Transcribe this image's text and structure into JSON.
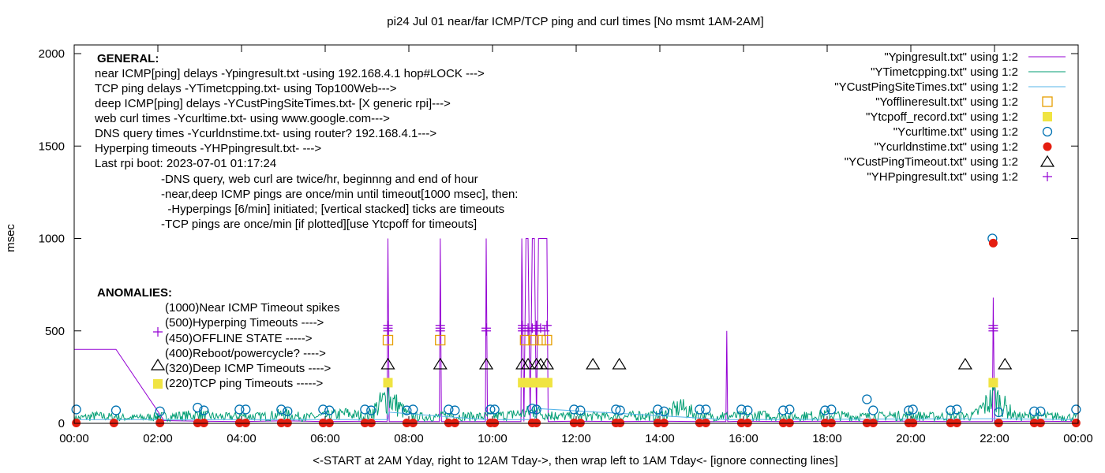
{
  "chart_data": {
    "type": "line",
    "title": "pi24 Jul 01  near/far ICMP/TCP ping and curl times [No msmt 1AM-2AM]",
    "xlabel": "<-START at 2AM Yday, right to 12AM Tday->, then wrap left to 1AM Tday<- [ignore connecting lines]",
    "ylabel": "msec",
    "xlim": [
      0,
      24
    ],
    "ylim": [
      0,
      2050
    ],
    "x_ticks": [
      0,
      2,
      4,
      6,
      8,
      10,
      12,
      14,
      16,
      18,
      20,
      22,
      24
    ],
    "x_tick_labels": [
      "00:00",
      "02:00",
      "04:00",
      "06:00",
      "08:00",
      "10:00",
      "12:00",
      "14:00",
      "16:00",
      "18:00",
      "20:00",
      "22:00",
      "00:00"
    ],
    "y_ticks": [
      0,
      500,
      1000,
      1500,
      2000
    ],
    "y_tick_labels": [
      "0",
      "500",
      "1000",
      "1500",
      "2000"
    ],
    "legend_position": "top-right",
    "series": [
      {
        "name": "\"Ypingresult.txt\" using 1:2",
        "style": "line",
        "color": "#9400d3",
        "points": [
          [
            0,
            400
          ],
          [
            1,
            400
          ],
          [
            2.15,
            15
          ],
          [
            3,
            12
          ],
          [
            4,
            10
          ],
          [
            5,
            14
          ],
          [
            6,
            10
          ],
          [
            7,
            12
          ],
          [
            7.48,
            10
          ],
          [
            7.5,
            1000
          ],
          [
            7.53,
            10
          ],
          [
            8.73,
            10
          ],
          [
            8.75,
            1000
          ],
          [
            8.78,
            10
          ],
          [
            9.83,
            10
          ],
          [
            9.85,
            1000
          ],
          [
            9.88,
            10
          ],
          [
            10.68,
            10
          ],
          [
            10.7,
            1000
          ],
          [
            10.75,
            10
          ],
          [
            10.8,
            1000
          ],
          [
            10.85,
            1000
          ],
          [
            10.9,
            10
          ],
          [
            10.95,
            1000
          ],
          [
            11.0,
            1000
          ],
          [
            11.05,
            10
          ],
          [
            11.1,
            1000
          ],
          [
            11.2,
            1000
          ],
          [
            11.3,
            1000
          ],
          [
            11.33,
            10
          ],
          [
            12,
            12
          ],
          [
            13,
            10
          ],
          [
            14,
            12
          ],
          [
            15,
            10
          ],
          [
            15.58,
            10
          ],
          [
            15.6,
            500
          ],
          [
            15.62,
            10
          ],
          [
            16,
            12
          ],
          [
            17,
            10
          ],
          [
            18,
            12
          ],
          [
            19,
            10
          ],
          [
            20,
            12
          ],
          [
            21,
            10
          ],
          [
            21.95,
            10
          ],
          [
            21.97,
            680
          ],
          [
            22.0,
            10
          ],
          [
            23,
            12
          ],
          [
            24,
            10
          ]
        ]
      },
      {
        "name": "\"YTimetcpping.txt\" using 1:2",
        "style": "noise-line",
        "color": "#009e73",
        "points": [
          [
            0,
            40
          ],
          [
            0.5,
            60
          ],
          [
            1,
            50
          ],
          [
            1.5,
            45
          ],
          [
            2,
            55
          ],
          [
            2.5,
            60
          ],
          [
            3,
            70
          ],
          [
            3.5,
            50
          ],
          [
            4,
            60
          ],
          [
            4.5,
            55
          ],
          [
            5,
            75
          ],
          [
            5.5,
            50
          ],
          [
            6,
            60
          ],
          [
            6.5,
            80
          ],
          [
            7,
            55
          ],
          [
            7.5,
            220
          ],
          [
            8,
            60
          ],
          [
            8.5,
            50
          ],
          [
            9,
            65
          ],
          [
            9.5,
            55
          ],
          [
            10,
            60
          ],
          [
            10.5,
            70
          ],
          [
            11,
            100
          ],
          [
            11.5,
            60
          ],
          [
            12,
            55
          ],
          [
            12.5,
            60
          ],
          [
            13,
            50
          ],
          [
            13.5,
            65
          ],
          [
            14,
            60
          ],
          [
            14.5,
            130
          ],
          [
            15,
            55
          ],
          [
            15.5,
            60
          ],
          [
            16,
            60
          ],
          [
            16.5,
            65
          ],
          [
            17,
            55
          ],
          [
            17.5,
            60
          ],
          [
            18,
            70
          ],
          [
            18.5,
            60
          ],
          [
            19,
            55
          ],
          [
            19.5,
            60
          ],
          [
            20,
            65
          ],
          [
            20.5,
            55
          ],
          [
            21,
            60
          ],
          [
            21.5,
            60
          ],
          [
            22,
            220
          ],
          [
            22.5,
            55
          ],
          [
            23,
            60
          ],
          [
            23.5,
            55
          ],
          [
            24,
            50
          ]
        ]
      },
      {
        "name": "\"YCustPingSiteTimes.txt\" using 1:2",
        "style": "line",
        "color": "#56b4e9",
        "points": [
          [
            0,
            20
          ],
          [
            2,
            20
          ],
          [
            7.5,
            20
          ],
          [
            7.52,
            60
          ],
          [
            9.85,
            20
          ],
          [
            11,
            20
          ],
          [
            11.05,
            80
          ],
          [
            15.6,
            20
          ],
          [
            22,
            25
          ],
          [
            24,
            20
          ]
        ]
      },
      {
        "name": "\"Yofflineresult.txt\" using 1:2",
        "style": "open-square",
        "color": "#e69f00",
        "points": [
          [
            7.5,
            450
          ],
          [
            8.75,
            450
          ],
          [
            10.78,
            450
          ],
          [
            10.98,
            450
          ],
          [
            11.15,
            450
          ],
          [
            11.3,
            450
          ]
        ]
      },
      {
        "name": "\"Ytcpoff_record.txt\" using 1:2",
        "style": "filled-square",
        "color": "#f0e442",
        "points": [
          [
            7.5,
            220
          ],
          [
            10.72,
            220
          ],
          [
            10.85,
            220
          ],
          [
            10.95,
            220
          ],
          [
            11.05,
            220
          ],
          [
            11.15,
            220
          ],
          [
            11.25,
            220
          ],
          [
            11.32,
            220
          ],
          [
            21.97,
            220
          ]
        ]
      },
      {
        "name": "\"Ycurltime.txt\" using 1:2",
        "style": "open-circle",
        "color": "#0072b2",
        "points": [
          [
            0.05,
            75
          ],
          [
            1.0,
            70
          ],
          [
            2.05,
            65
          ],
          [
            2.95,
            85
          ],
          [
            3.1,
            70
          ],
          [
            3.95,
            75
          ],
          [
            4.1,
            75
          ],
          [
            4.95,
            75
          ],
          [
            5.1,
            65
          ],
          [
            5.95,
            75
          ],
          [
            6.1,
            70
          ],
          [
            6.95,
            75
          ],
          [
            7.1,
            70
          ],
          [
            7.95,
            70
          ],
          [
            8.1,
            75
          ],
          [
            8.95,
            75
          ],
          [
            9.1,
            70
          ],
          [
            9.95,
            75
          ],
          [
            10.05,
            75
          ],
          [
            10.95,
            80
          ],
          [
            11.05,
            75
          ],
          [
            11.95,
            75
          ],
          [
            12.1,
            70
          ],
          [
            12.95,
            75
          ],
          [
            13.05,
            70
          ],
          [
            13.95,
            75
          ],
          [
            14.1,
            65
          ],
          [
            14.95,
            75
          ],
          [
            15.1,
            75
          ],
          [
            15.95,
            75
          ],
          [
            16.1,
            70
          ],
          [
            16.95,
            70
          ],
          [
            17.1,
            75
          ],
          [
            17.95,
            70
          ],
          [
            18.1,
            75
          ],
          [
            18.95,
            130
          ],
          [
            19.1,
            70
          ],
          [
            19.95,
            70
          ],
          [
            20.05,
            75
          ],
          [
            20.95,
            70
          ],
          [
            21.1,
            75
          ],
          [
            21.95,
            1000
          ],
          [
            22.1,
            60
          ],
          [
            22.95,
            65
          ],
          [
            23.1,
            65
          ],
          [
            23.95,
            75
          ]
        ]
      },
      {
        "name": "\"Ycurldnstime.txt\" using 1:2",
        "style": "filled-circle",
        "color": "#e51e10",
        "points": [
          [
            0.05,
            2
          ],
          [
            0.95,
            2
          ],
          [
            2.05,
            2
          ],
          [
            2.95,
            2
          ],
          [
            3.1,
            2
          ],
          [
            3.95,
            2
          ],
          [
            4.1,
            2
          ],
          [
            4.95,
            2
          ],
          [
            5.1,
            2
          ],
          [
            5.95,
            2
          ],
          [
            6.1,
            2
          ],
          [
            6.95,
            2
          ],
          [
            7.1,
            2
          ],
          [
            7.95,
            2
          ],
          [
            8.1,
            2
          ],
          [
            8.95,
            2
          ],
          [
            9.1,
            2
          ],
          [
            9.95,
            2
          ],
          [
            10.05,
            2
          ],
          [
            10.95,
            2
          ],
          [
            11.05,
            2
          ],
          [
            11.95,
            2
          ],
          [
            12.1,
            2
          ],
          [
            12.95,
            2
          ],
          [
            13.05,
            2
          ],
          [
            13.95,
            2
          ],
          [
            14.1,
            2
          ],
          [
            14.95,
            2
          ],
          [
            15.1,
            2
          ],
          [
            15.95,
            2
          ],
          [
            16.1,
            2
          ],
          [
            16.95,
            2
          ],
          [
            17.1,
            2
          ],
          [
            17.95,
            2
          ],
          [
            18.1,
            2
          ],
          [
            18.95,
            2
          ],
          [
            19.1,
            2
          ],
          [
            19.95,
            2
          ],
          [
            20.05,
            2
          ],
          [
            20.95,
            2
          ],
          [
            21.1,
            2
          ],
          [
            21.97,
            975
          ],
          [
            22.1,
            2
          ],
          [
            22.95,
            2
          ],
          [
            23.1,
            2
          ],
          [
            23.95,
            2
          ]
        ]
      },
      {
        "name": "\"YCustPingTimeout.txt\" using 1:2",
        "style": "open-triangle",
        "color": "#000000",
        "points": [
          [
            7.5,
            320
          ],
          [
            8.75,
            320
          ],
          [
            9.85,
            320
          ],
          [
            10.72,
            320
          ],
          [
            10.85,
            320
          ],
          [
            11.05,
            320
          ],
          [
            11.15,
            320
          ],
          [
            11.3,
            320
          ],
          [
            12.4,
            320
          ],
          [
            13.03,
            320
          ],
          [
            21.3,
            320
          ],
          [
            22.25,
            320
          ]
        ]
      },
      {
        "name": "\"YHPpingresult.txt\" using 1:2",
        "style": "plus",
        "color": "#9400d3",
        "points": [
          [
            7.5,
            500
          ],
          [
            7.5,
            515
          ],
          [
            7.5,
            530
          ],
          [
            8.75,
            500
          ],
          [
            8.75,
            515
          ],
          [
            8.75,
            530
          ],
          [
            9.85,
            500
          ],
          [
            9.85,
            515
          ],
          [
            10.72,
            500
          ],
          [
            10.72,
            515
          ],
          [
            10.72,
            530
          ],
          [
            10.85,
            500
          ],
          [
            10.85,
            515
          ],
          [
            10.95,
            515
          ],
          [
            11.05,
            500
          ],
          [
            11.05,
            530
          ],
          [
            11.15,
            515
          ],
          [
            11.25,
            500
          ],
          [
            11.3,
            530
          ],
          [
            21.97,
            500
          ],
          [
            21.97,
            515
          ],
          [
            21.97,
            530
          ]
        ]
      }
    ],
    "annotations": {
      "general_heading": "GENERAL:",
      "general_lines": [
        "near ICMP[ping] delays -Ypingresult.txt -using 192.168.4.1 hop#LOCK --->",
        "TCP ping delays -YTimetcpping.txt- using Top100Web--->",
        "deep ICMP[ping] delays -YCustPingSiteTimes.txt- [X generic rpi]--->",
        "web curl times -Ycurltime.txt- using www.google.com--->",
        "DNS query times -Ycurldnstime.txt- using router? 192.168.4.1--->",
        "Hyperping timeouts -YHPpingresult.txt- --->",
        "Last rpi boot: 2023-07-01 01:17:24"
      ],
      "notes": [
        "-DNS query, web curl are twice/hr, beginnng and end of hour",
        "-near,deep ICMP pings are once/min until timeout[1000 msec], then:",
        "  -Hyperpings [6/min] initiated; [vertical stacked] ticks are timeouts",
        "-TCP pings are once/min [if plotted][use Ytcpoff for timeouts]"
      ],
      "anomalies_heading": "ANOMALIES:",
      "anomalies": [
        "(1000)Near ICMP Timeout spikes",
        "(500)Hyperping Timeouts ---->",
        "(450)OFFLINE STATE ----->",
        "(400)Reboot/powercycle? ---->",
        "(320)Deep ICMP Timeouts ---->",
        "(220)TCP ping Timeouts ----->"
      ]
    }
  }
}
